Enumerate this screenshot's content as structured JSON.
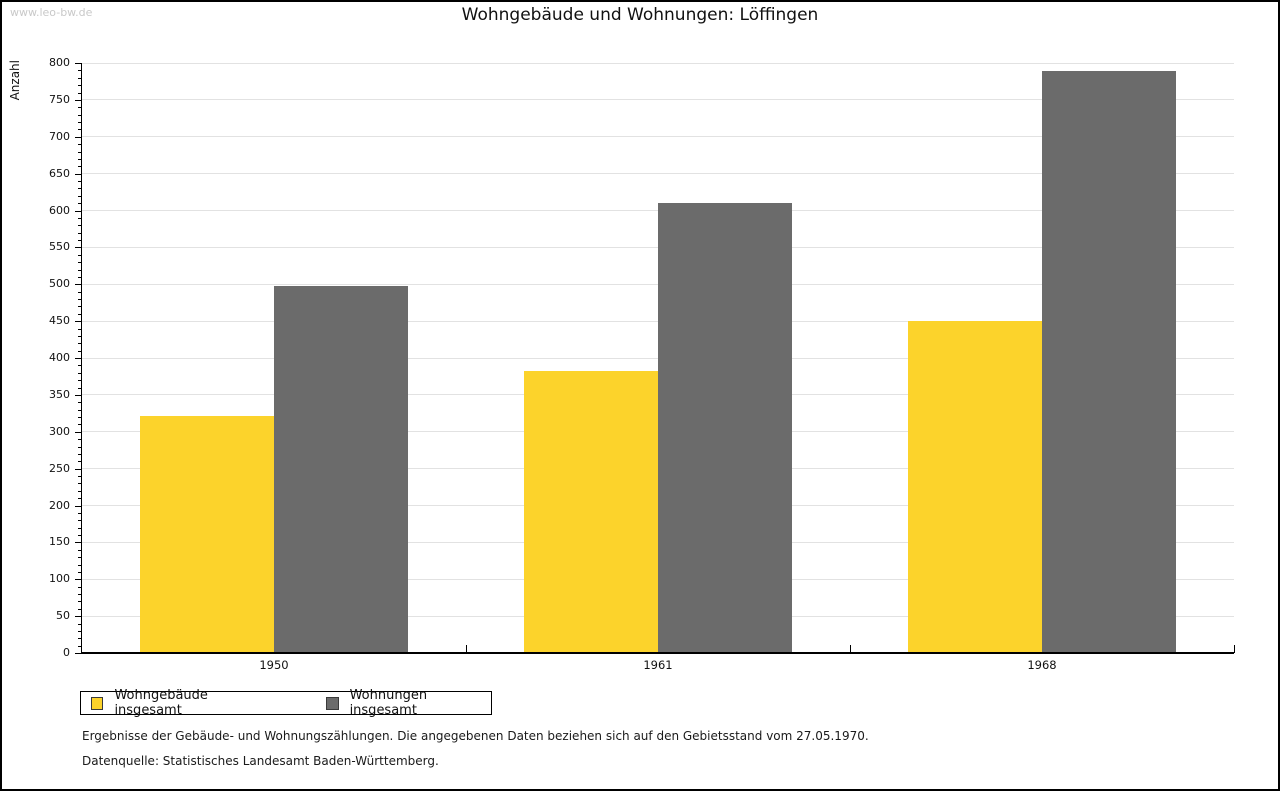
{
  "watermark": "www.leo-bw.de",
  "title": "Wohngebäude und Wohnungen: Löffingen",
  "chart_data": {
    "type": "bar",
    "title": "Wohngebäude und Wohnungen: Löffingen",
    "categories": [
      "1950",
      "1961",
      "1968"
    ],
    "series": [
      {
        "name": "Wohngebäude insgesamt",
        "color": "#FCD32B",
        "values": [
          322,
          383,
          450
        ]
      },
      {
        "name": "Wohnungen insgesamt",
        "color": "#6B6B6B",
        "values": [
          497,
          610,
          789
        ]
      }
    ],
    "xlabel": "",
    "ylabel": "Anzahl",
    "ylim": [
      0,
      800
    ],
    "y_major_step": 50,
    "y_minor_step": 10,
    "y_ticks": [
      0,
      50,
      100,
      150,
      200,
      250,
      300,
      350,
      400,
      450,
      500,
      550,
      600,
      650,
      700,
      750,
      800
    ],
    "grid": true,
    "gridline_color": "#e2e2e2",
    "legend_position": "bottom-left"
  },
  "footer": {
    "line1": "Ergebnisse der Gebäude- und Wohnungszählungen. Die angegebenen Daten beziehen sich auf den Gebietsstand vom 27.05.1970.",
    "line2": "Datenquelle: Statistisches Landesamt Baden-Württemberg."
  }
}
